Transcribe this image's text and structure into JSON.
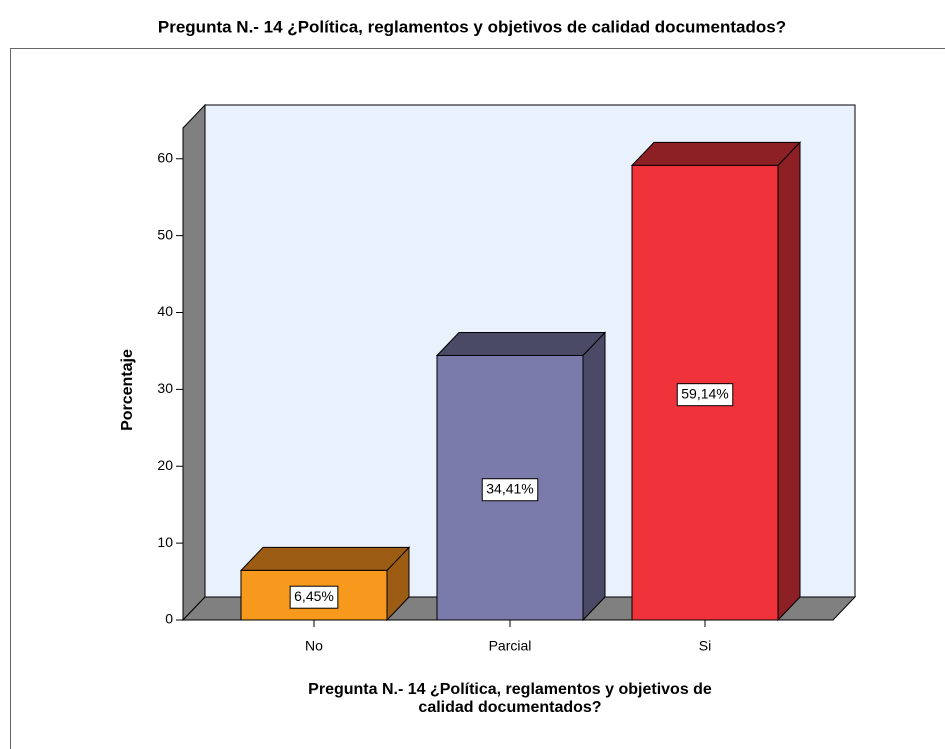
{
  "chart_data": {
    "type": "bar",
    "title": "Pregunta N.- 14 ¿Política, reglamentos y objetivos de calidad documentados?",
    "xlabel": [
      "Pregunta N.- 14 ¿Política, reglamentos y objetivos de",
      "calidad documentados?"
    ],
    "ylabel": "Porcentaje",
    "categories": [
      "No",
      "Parcial",
      "Si"
    ],
    "values": [
      6.45,
      34.41,
      59.14
    ],
    "value_labels": [
      "6,45%",
      "34,41%",
      "59,14%"
    ],
    "colors": [
      "#f7991c",
      "#7b7bab",
      "#f0333a"
    ],
    "side_colors": [
      "#9c5c14",
      "#4a4a66",
      "#8c2025"
    ],
    "ylim": [
      0,
      64
    ],
    "yticks": [
      0,
      10,
      20,
      30,
      40,
      50,
      60
    ]
  }
}
